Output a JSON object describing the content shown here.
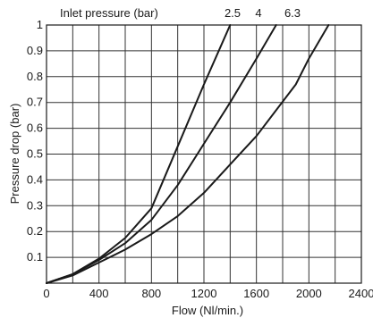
{
  "chart_data": {
    "type": "line",
    "title": "",
    "legend_title": "Inlet pressure  (bar)",
    "xlabel": "Flow (Nl/min.)",
    "ylabel": "Pressure drop (bar)",
    "xlim": [
      0,
      2400
    ],
    "ylim": [
      0,
      1
    ],
    "x_ticks": [
      0,
      400,
      800,
      1200,
      1600,
      2000,
      2400
    ],
    "y_ticks": [
      0.1,
      0.2,
      0.3,
      0.4,
      0.5,
      0.6,
      0.7,
      0.8,
      0.9,
      1
    ],
    "x_tick_labels": [
      "0",
      "400",
      "800",
      "1200",
      "1600",
      "2000",
      "2400"
    ],
    "y_tick_labels": [
      "0.1",
      "0.2",
      "0.3",
      "0.4",
      "0.5",
      "0.6",
      "0.7",
      "0.8",
      "0.9",
      "1"
    ],
    "grid": true,
    "series": [
      {
        "name": "2.5",
        "x": [
          0,
          200,
          400,
          600,
          800,
          1000,
          1200,
          1400
        ],
        "y": [
          0,
          0.035,
          0.095,
          0.175,
          0.29,
          0.53,
          0.77,
          1.0
        ]
      },
      {
        "name": "4",
        "x": [
          0,
          200,
          400,
          600,
          800,
          1000,
          1200,
          1400,
          1600,
          1750
        ],
        "y": [
          0,
          0.035,
          0.09,
          0.155,
          0.245,
          0.38,
          0.54,
          0.7,
          0.87,
          1.0
        ]
      },
      {
        "name": "6.3",
        "x": [
          0,
          200,
          400,
          600,
          800,
          1000,
          1200,
          1400,
          1600,
          1900,
          2000,
          2150
        ],
        "y": [
          0,
          0.03,
          0.08,
          0.13,
          0.19,
          0.26,
          0.35,
          0.46,
          0.57,
          0.77,
          0.87,
          1.0
        ]
      }
    ]
  }
}
